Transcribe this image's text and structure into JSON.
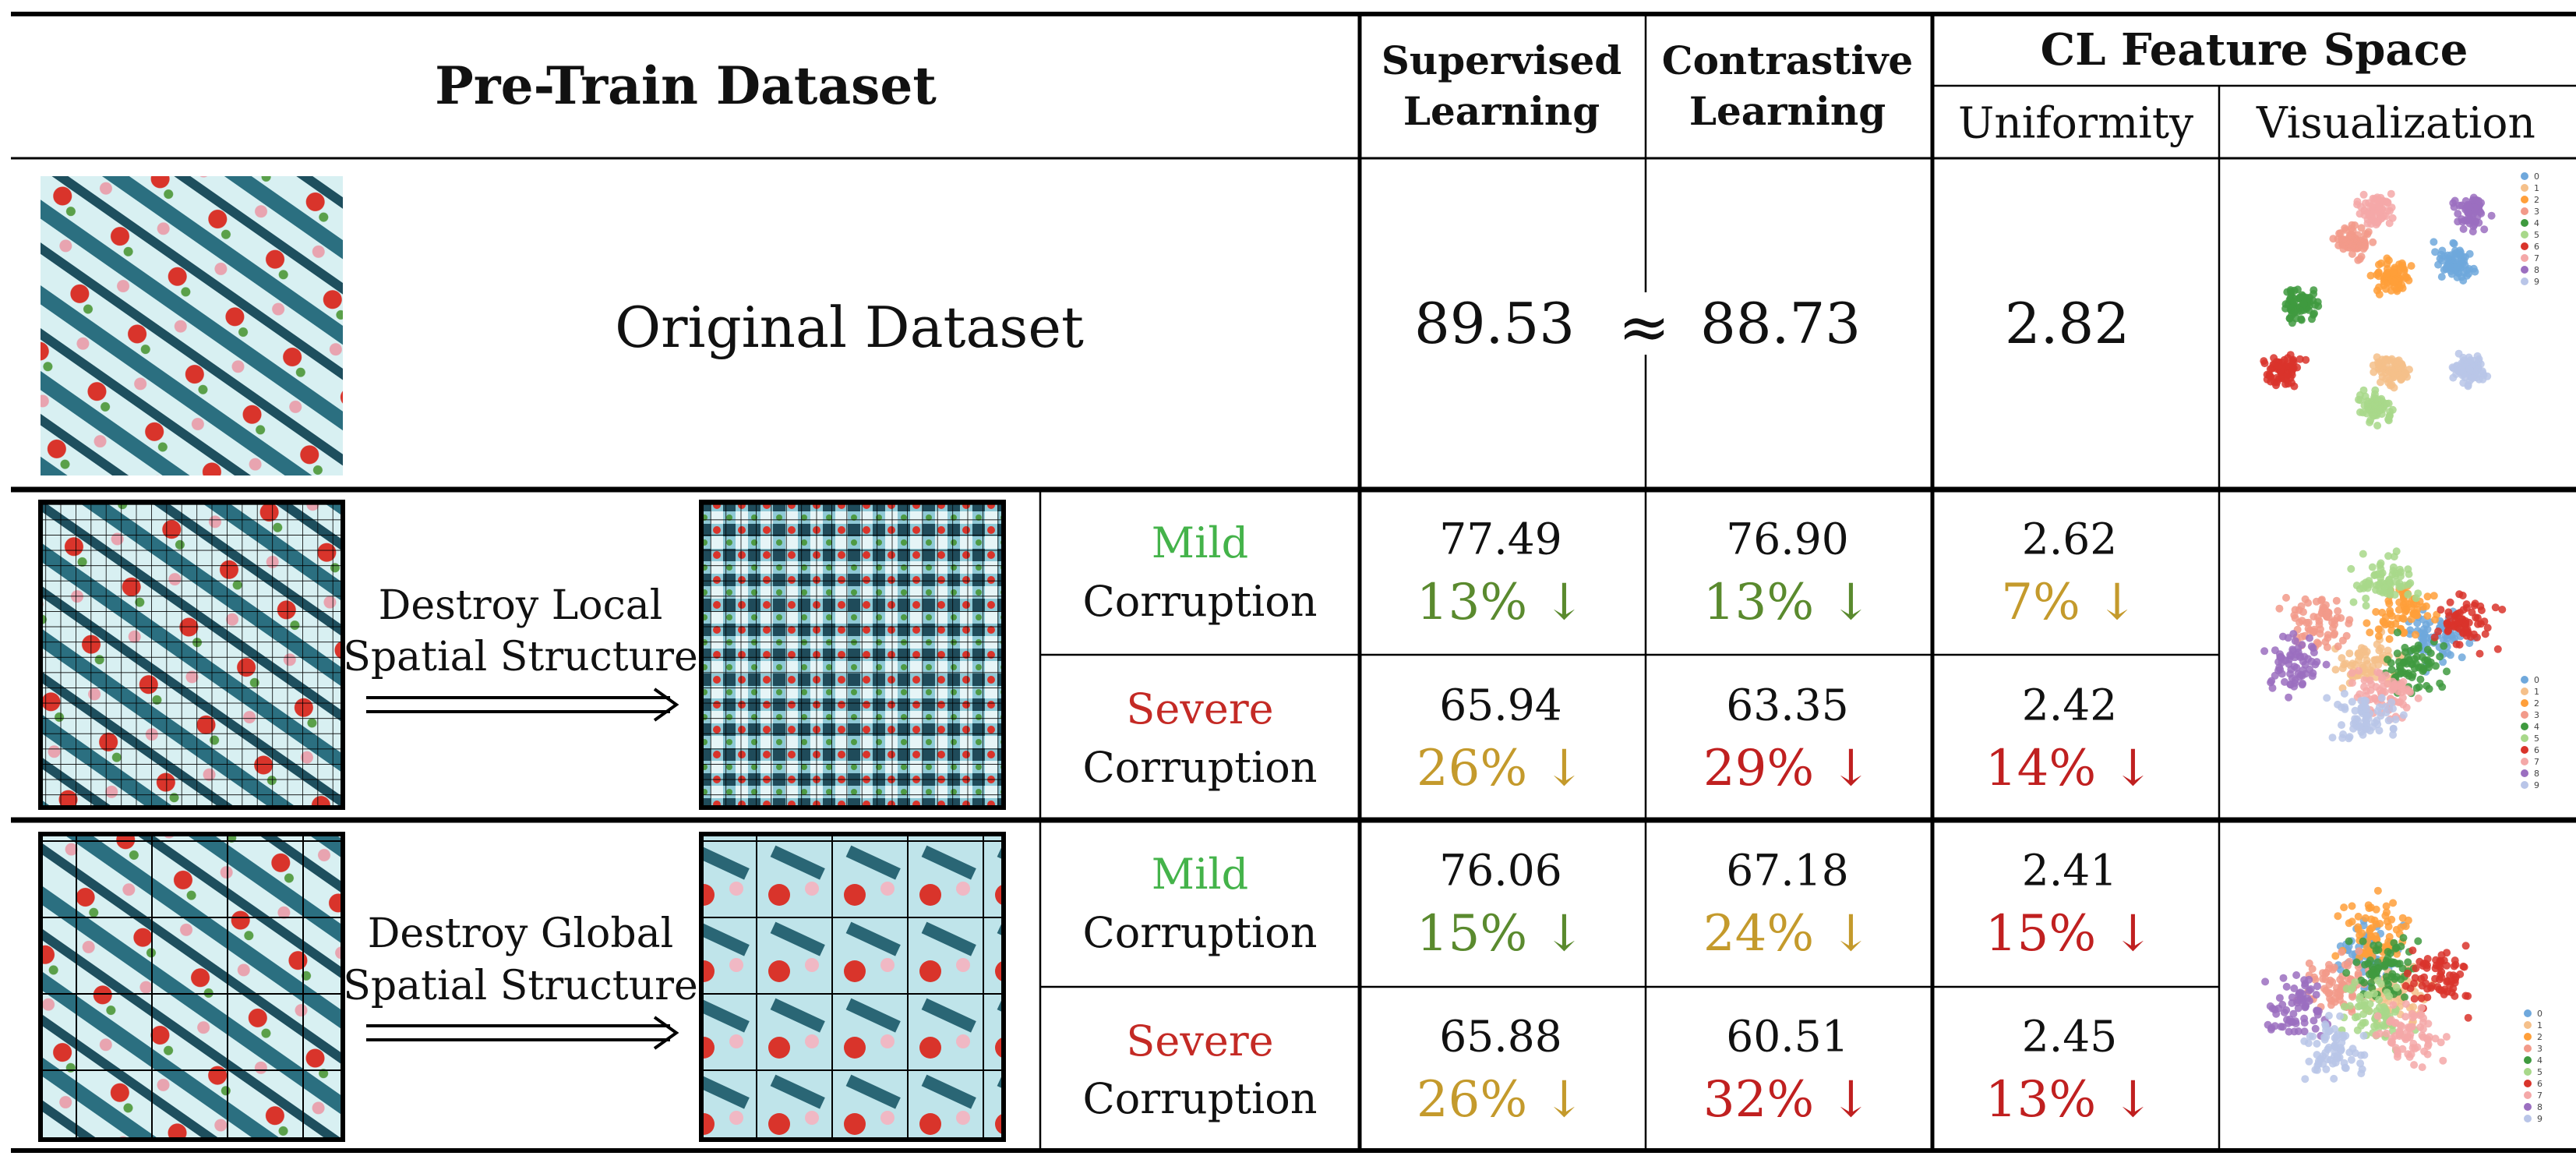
{
  "header": {
    "pretrain": "Pre-Train Dataset",
    "supervised": [
      "Supervised",
      "Learning"
    ],
    "contrastive": [
      "Contrastive",
      "Learning"
    ],
    "feature_space": "CL Feature Space",
    "uniformity": "Uniformity",
    "visualization": "Visualization"
  },
  "original": {
    "label": "Original Dataset",
    "supervised": "89.53",
    "approx": "≈",
    "contrastive": "88.73",
    "uniformity": "2.82"
  },
  "local": {
    "desc": [
      "Destroy Local",
      "Spatial Structure"
    ],
    "mild": {
      "word": "Mild",
      "corruption": "Corruption",
      "sup": "77.49",
      "sup_pct": "13% ↓",
      "con": "76.90",
      "con_pct": "13% ↓",
      "uni": "2.62",
      "uni_pct": "7% ↓"
    },
    "severe": {
      "word": "Severe",
      "corruption": "Corruption",
      "sup": "65.94",
      "sup_pct": "26% ↓",
      "con": "63.35",
      "con_pct": "29% ↓",
      "uni": "2.42",
      "uni_pct": "14% ↓"
    }
  },
  "global": {
    "desc": [
      "Destroy Global",
      "Spatial Structure"
    ],
    "mild": {
      "word": "Mild",
      "corruption": "Corruption",
      "sup": "76.06",
      "sup_pct": "15% ↓",
      "con": "67.18",
      "con_pct": "24% ↓",
      "uni": "2.41",
      "uni_pct": "15% ↓"
    },
    "severe": {
      "word": "Severe",
      "corruption": "Corruption",
      "sup": "65.88",
      "sup_pct": "26% ↓",
      "con": "60.51",
      "con_pct": "32% ↓",
      "uni": "2.45",
      "uni_pct": "13% ↓"
    }
  },
  "legend_labels": [
    "0",
    "1",
    "2",
    "3",
    "4",
    "5",
    "6",
    "7",
    "8",
    "9"
  ],
  "colors": {
    "green_drop": "#5a8a2e",
    "gold_drop": "#c49a2c",
    "red_drop": "#c02020",
    "mild": "#44b34a",
    "severe": "#c42a25"
  },
  "class_colors": [
    "#6fa8dc",
    "#f5c08a",
    "#ff9f3a",
    "#f29a8a",
    "#3f9a3f",
    "#a8d88a",
    "#d9342b",
    "#f4a8a8",
    "#9b6fc0",
    "#b9c5e8"
  ]
}
